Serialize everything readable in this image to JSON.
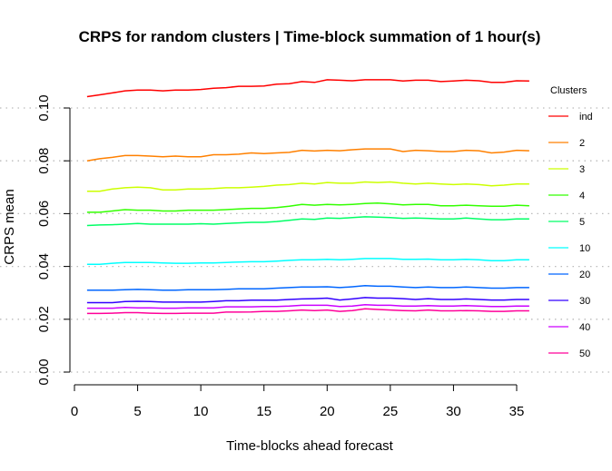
{
  "chart_data": {
    "type": "line",
    "title": "CRPS for random clusters | Time-block summation of 1 hour(s)",
    "xlabel": "Time-blocks ahead forecast",
    "ylabel": "CRPS mean",
    "xlim": [
      0,
      36
    ],
    "ylim": [
      0,
      0.11
    ],
    "xticks": [
      0,
      5,
      10,
      15,
      20,
      25,
      30,
      35
    ],
    "xtick_labels": [
      "0",
      "5",
      "10",
      "15",
      "20",
      "25",
      "30",
      "35"
    ],
    "yticks": [
      0.0,
      0.02,
      0.04,
      0.06,
      0.08,
      0.1
    ],
    "ytick_labels": [
      "0.00",
      "0.02",
      "0.04",
      "0.06",
      "0.08",
      "0.10"
    ],
    "grid": "horizontal dotted",
    "legend_title": "Clusters",
    "legend_position": "right",
    "x": [
      1,
      2,
      3,
      4,
      5,
      6,
      7,
      8,
      9,
      10,
      11,
      12,
      13,
      14,
      15,
      16,
      17,
      18,
      19,
      20,
      21,
      22,
      23,
      24,
      25,
      26,
      27,
      28,
      29,
      30,
      31,
      32,
      33,
      34,
      35,
      36
    ],
    "series": [
      {
        "name": "ind",
        "color": "#FF0000",
        "values": [
          0.1043,
          0.105,
          0.1057,
          0.1065,
          0.1068,
          0.1068,
          0.1065,
          0.1068,
          0.1068,
          0.107,
          0.1075,
          0.1077,
          0.1082,
          0.1082,
          0.1083,
          0.109,
          0.1092,
          0.11,
          0.1097,
          0.1107,
          0.1105,
          0.1103,
          0.1107,
          0.1107,
          0.1107,
          0.1102,
          0.1105,
          0.1105,
          0.11,
          0.1102,
          0.1105,
          0.1103,
          0.1097,
          0.1097,
          0.1103,
          0.1102
        ]
      },
      {
        "name": "2",
        "color": "#FF8000",
        "values": [
          0.08,
          0.0808,
          0.0813,
          0.082,
          0.082,
          0.0818,
          0.0815,
          0.0818,
          0.0815,
          0.0815,
          0.0823,
          0.0823,
          0.0825,
          0.083,
          0.0827,
          0.083,
          0.0832,
          0.084,
          0.0837,
          0.084,
          0.0838,
          0.0842,
          0.0845,
          0.0845,
          0.0845,
          0.0835,
          0.084,
          0.0838,
          0.0835,
          0.0835,
          0.084,
          0.0838,
          0.083,
          0.0833,
          0.084,
          0.0838
        ]
      },
      {
        "name": "3",
        "color": "#CCFF00",
        "values": [
          0.0685,
          0.0685,
          0.0693,
          0.0698,
          0.07,
          0.0698,
          0.069,
          0.069,
          0.0693,
          0.0693,
          0.0695,
          0.0698,
          0.0698,
          0.07,
          0.0703,
          0.0708,
          0.071,
          0.0715,
          0.0712,
          0.0718,
          0.0715,
          0.0715,
          0.072,
          0.0718,
          0.072,
          0.0715,
          0.0712,
          0.0715,
          0.0712,
          0.071,
          0.0712,
          0.071,
          0.0705,
          0.0708,
          0.0712,
          0.0712
        ]
      },
      {
        "name": "4",
        "color": "#33FF00",
        "values": [
          0.0605,
          0.0605,
          0.061,
          0.0615,
          0.0613,
          0.0613,
          0.061,
          0.061,
          0.0613,
          0.0613,
          0.0613,
          0.0615,
          0.0618,
          0.062,
          0.062,
          0.0623,
          0.0628,
          0.0635,
          0.0632,
          0.0635,
          0.0633,
          0.0635,
          0.0638,
          0.064,
          0.0637,
          0.0633,
          0.0635,
          0.0635,
          0.063,
          0.063,
          0.0632,
          0.063,
          0.0628,
          0.0628,
          0.0632,
          0.063
        ]
      },
      {
        "name": "5",
        "color": "#00FF66",
        "values": [
          0.0555,
          0.0557,
          0.0558,
          0.056,
          0.0563,
          0.056,
          0.056,
          0.056,
          0.056,
          0.0562,
          0.056,
          0.0563,
          0.0565,
          0.0567,
          0.0567,
          0.057,
          0.0575,
          0.058,
          0.0578,
          0.0583,
          0.0582,
          0.0585,
          0.0588,
          0.0587,
          0.0585,
          0.0582,
          0.0583,
          0.0582,
          0.058,
          0.058,
          0.0583,
          0.058,
          0.0577,
          0.0577,
          0.058,
          0.058
        ]
      },
      {
        "name": "10",
        "color": "#00FFFF",
        "values": [
          0.0408,
          0.0408,
          0.0412,
          0.0415,
          0.0415,
          0.0415,
          0.0413,
          0.0412,
          0.0412,
          0.0413,
          0.0413,
          0.0415,
          0.0417,
          0.0418,
          0.0418,
          0.042,
          0.0423,
          0.0425,
          0.0425,
          0.0427,
          0.0425,
          0.0427,
          0.043,
          0.043,
          0.043,
          0.0427,
          0.0427,
          0.0428,
          0.0425,
          0.0425,
          0.0427,
          0.0425,
          0.0422,
          0.0422,
          0.0425,
          0.0425
        ]
      },
      {
        "name": "20",
        "color": "#0066FF",
        "values": [
          0.031,
          0.031,
          0.031,
          0.0312,
          0.0313,
          0.0312,
          0.031,
          0.031,
          0.0312,
          0.0312,
          0.0312,
          0.0313,
          0.0315,
          0.0315,
          0.0315,
          0.0318,
          0.032,
          0.0322,
          0.0322,
          0.0323,
          0.032,
          0.0323,
          0.0327,
          0.0325,
          0.0325,
          0.0322,
          0.032,
          0.0322,
          0.032,
          0.032,
          0.0322,
          0.032,
          0.0318,
          0.0318,
          0.032,
          0.032
        ]
      },
      {
        "name": "30",
        "color": "#3300FF",
        "values": [
          0.0263,
          0.0263,
          0.0263,
          0.0267,
          0.0268,
          0.0267,
          0.0265,
          0.0265,
          0.0265,
          0.0265,
          0.0267,
          0.027,
          0.027,
          0.0272,
          0.0272,
          0.0272,
          0.0275,
          0.0277,
          0.0278,
          0.028,
          0.0273,
          0.0277,
          0.0282,
          0.028,
          0.028,
          0.0278,
          0.0275,
          0.0278,
          0.0275,
          0.0275,
          0.0277,
          0.0275,
          0.0273,
          0.0273,
          0.0275,
          0.0275
        ]
      },
      {
        "name": "40",
        "color": "#CC00FF",
        "values": [
          0.0242,
          0.0242,
          0.0242,
          0.0245,
          0.0243,
          0.0243,
          0.0242,
          0.0242,
          0.0243,
          0.0243,
          0.0243,
          0.0247,
          0.0247,
          0.0247,
          0.0248,
          0.0248,
          0.025,
          0.0253,
          0.0253,
          0.0253,
          0.0248,
          0.025,
          0.0255,
          0.0253,
          0.0253,
          0.025,
          0.025,
          0.0252,
          0.025,
          0.025,
          0.0252,
          0.025,
          0.0248,
          0.0248,
          0.025,
          0.025
        ]
      },
      {
        "name": "50",
        "color": "#FF0099",
        "values": [
          0.0222,
          0.0222,
          0.0223,
          0.0225,
          0.0225,
          0.0223,
          0.0222,
          0.0222,
          0.0223,
          0.0223,
          0.0223,
          0.0227,
          0.0227,
          0.0228,
          0.023,
          0.023,
          0.0232,
          0.0235,
          0.0233,
          0.0235,
          0.023,
          0.0233,
          0.024,
          0.0237,
          0.0235,
          0.0233,
          0.0232,
          0.0235,
          0.0232,
          0.0232,
          0.0233,
          0.0232,
          0.023,
          0.023,
          0.0232,
          0.0232
        ]
      }
    ]
  }
}
